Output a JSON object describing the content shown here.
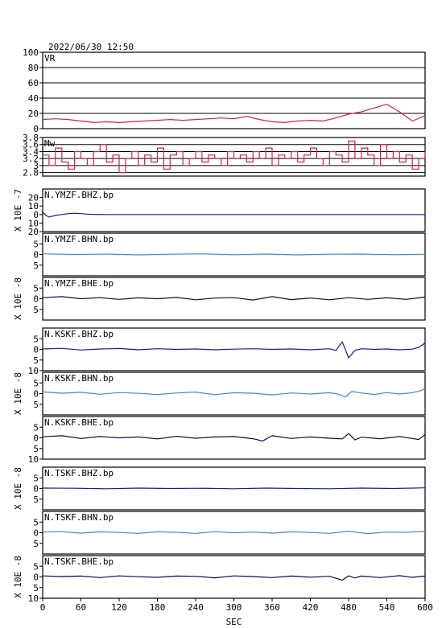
{
  "header": {
    "timestamp": "2022/06/30 12:50"
  },
  "chart_data": {
    "type": "line",
    "xlabel": "SEC",
    "xlim": [
      0,
      600
    ],
    "xticks": [
      0,
      60,
      120,
      180,
      240,
      300,
      360,
      420,
      480,
      540,
      600
    ],
    "panels": [
      {
        "name": "VR",
        "ylim": [
          0,
          100
        ],
        "yticks": [
          0,
          20,
          40,
          60,
          80,
          100
        ],
        "ytick_labels": [
          "0",
          "20",
          "40",
          "60",
          "80",
          "100"
        ],
        "grid": true,
        "color": "#d6204a",
        "series": {
          "x": [
            0,
            20,
            40,
            60,
            80,
            100,
            120,
            140,
            160,
            180,
            200,
            220,
            240,
            260,
            280,
            300,
            320,
            340,
            360,
            380,
            400,
            420,
            440,
            460,
            480,
            500,
            520,
            540,
            560,
            580,
            600
          ],
          "y": [
            12,
            13,
            12,
            10,
            8,
            9,
            8,
            9,
            10,
            11,
            12,
            11,
            12,
            13,
            14,
            13,
            16,
            12,
            9,
            8,
            10,
            11,
            10,
            14,
            19,
            22,
            27,
            32,
            22,
            10,
            17
          ]
        }
      },
      {
        "name": "Mw",
        "ylim": [
          2.7,
          3.8
        ],
        "yticks": [
          2.8,
          3.0,
          3.2,
          3.4,
          3.6,
          3.8
        ],
        "ytick_labels": [
          "2.8",
          "3",
          "3.2",
          "3.4",
          "3.6",
          "3.8"
        ],
        "grid": true,
        "color": "#d6204a",
        "series": {
          "x": [
            0,
            10,
            20,
            30,
            40,
            50,
            60,
            70,
            80,
            90,
            100,
            110,
            120,
            130,
            140,
            150,
            160,
            170,
            180,
            190,
            200,
            210,
            220,
            230,
            240,
            250,
            260,
            270,
            280,
            290,
            300,
            310,
            320,
            330,
            340,
            350,
            360,
            370,
            380,
            390,
            400,
            410,
            420,
            430,
            440,
            450,
            460,
            470,
            480,
            490,
            500,
            510,
            520,
            530,
            540,
            550,
            560,
            570,
            580,
            590,
            600
          ],
          "y": [
            3.3,
            3.0,
            3.5,
            3.1,
            2.9,
            3.4,
            3.2,
            3.0,
            3.4,
            3.6,
            3.1,
            3.3,
            2.8,
            3.2,
            3.4,
            3.0,
            3.3,
            3.1,
            3.5,
            2.9,
            3.3,
            3.4,
            3.0,
            3.2,
            3.4,
            3.1,
            3.3,
            3.2,
            3.0,
            3.4,
            3.2,
            3.3,
            3.1,
            3.4,
            3.2,
            3.5,
            3.0,
            3.3,
            3.2,
            3.4,
            3.1,
            3.3,
            3.5,
            3.2,
            3.0,
            3.4,
            3.3,
            3.1,
            3.7,
            3.2,
            3.5,
            3.3,
            3.0,
            3.6,
            3.2,
            3.4,
            3.1,
            3.3,
            2.9,
            3.2,
            3.4
          ]
        }
      },
      {
        "name": "N.YMZF.BHZ.bp",
        "ylim": [
          -20,
          30
        ],
        "yticks": [
          -20,
          -10,
          0,
          10,
          20
        ],
        "ytick_labels": [
          "20",
          "10",
          "0",
          "10",
          "20"
        ],
        "color": "#1a1aa0",
        "series": {
          "x": [
            0,
            5,
            10,
            15,
            20,
            30,
            40,
            50,
            60,
            70,
            80,
            100,
            150,
            200,
            300,
            400,
            500,
            600
          ],
          "y": [
            3,
            -1,
            -3,
            -2,
            -1,
            0,
            1,
            1.5,
            1,
            0.5,
            0.2,
            0,
            0,
            0,
            0,
            0,
            0,
            0
          ]
        }
      },
      {
        "name": "N.YMZF.BHN.bp",
        "ylim": [
          -10,
          10
        ],
        "yticks": [
          -5,
          0,
          5
        ],
        "ytick_labels": [
          "5",
          "0",
          "5"
        ],
        "color": "#3c8ad2",
        "series": {
          "x": [
            0,
            50,
            100,
            150,
            200,
            250,
            300,
            350,
            400,
            450,
            500,
            550,
            600
          ],
          "y": [
            0.3,
            0,
            0.2,
            -0.2,
            0.1,
            0.3,
            -0.1,
            0.2,
            -0.2,
            0.1,
            0.2,
            -0.1,
            0.1
          ]
        }
      },
      {
        "name": "N.YMZF.BHE.bp",
        "ylim": [
          -10,
          10
        ],
        "yticks": [
          -5,
          0,
          5
        ],
        "ytick_labels": [
          "5",
          "0",
          "5"
        ],
        "color": "#0a0a4a",
        "series": {
          "x": [
            0,
            30,
            60,
            90,
            120,
            150,
            180,
            210,
            240,
            270,
            300,
            330,
            360,
            390,
            420,
            450,
            480,
            510,
            540,
            570,
            600
          ],
          "y": [
            0.5,
            1,
            0,
            0.5,
            -0.3,
            0.4,
            0,
            0.6,
            -0.5,
            0.3,
            0.5,
            -0.6,
            1,
            -0.4,
            0.3,
            -0.5,
            0.5,
            -0.3,
            0.4,
            -0.3,
            0.8
          ]
        }
      },
      {
        "name": "N.KSKF.BHZ.bp",
        "ylim": [
          -10,
          10
        ],
        "yticks": [
          -10,
          -5,
          0,
          5
        ],
        "ytick_labels": [
          "10",
          "5",
          "0",
          "5"
        ],
        "color": "#1a1aa0",
        "series": {
          "x": [
            0,
            30,
            60,
            90,
            120,
            150,
            180,
            210,
            240,
            270,
            300,
            330,
            360,
            390,
            420,
            450,
            460,
            470,
            475,
            480,
            490,
            500,
            520,
            540,
            560,
            580,
            590,
            600
          ],
          "y": [
            0.2,
            0.5,
            -0.3,
            0.2,
            0.4,
            -0.2,
            0.3,
            0,
            0.2,
            -0.2,
            0.1,
            0.3,
            0,
            0.2,
            -0.2,
            0.3,
            -0.5,
            3.5,
            0,
            -4,
            -0.5,
            0.3,
            0,
            0.2,
            -0.2,
            0.1,
            1,
            3
          ]
        }
      },
      {
        "name": "N.KSKF.BHN.bp",
        "ylim": [
          -10,
          10
        ],
        "yticks": [
          -5,
          0,
          5
        ],
        "ytick_labels": [
          "5",
          "0",
          "5"
        ],
        "color": "#3c8ad2",
        "series": {
          "x": [
            0,
            30,
            60,
            90,
            120,
            150,
            180,
            210,
            240,
            270,
            300,
            330,
            360,
            390,
            420,
            450,
            465,
            475,
            485,
            500,
            520,
            540,
            560,
            580,
            595,
            600
          ],
          "y": [
            0.8,
            0.2,
            0.6,
            -0.3,
            0.5,
            0.1,
            -0.4,
            0.3,
            0.7,
            -0.5,
            0.4,
            0.2,
            -0.6,
            0.3,
            -0.2,
            0.4,
            -0.3,
            -1.5,
            1,
            0.3,
            -0.4,
            0.5,
            -0.2,
            0.4,
            1.5,
            2.5
          ]
        }
      },
      {
        "name": "N.KSKF.BHE.bp",
        "ylim": [
          -10,
          10
        ],
        "yticks": [
          -10,
          -5,
          0,
          5
        ],
        "ytick_labels": [
          "10",
          "5",
          "0",
          "5"
        ],
        "color": "#0a0a4a",
        "series": {
          "x": [
            0,
            30,
            60,
            90,
            120,
            150,
            180,
            210,
            240,
            270,
            300,
            330,
            345,
            360,
            390,
            420,
            450,
            470,
            480,
            490,
            500,
            530,
            560,
            580,
            590,
            600
          ],
          "y": [
            0.5,
            1,
            -0.3,
            0.6,
            0,
            0.4,
            -0.5,
            0.7,
            -0.2,
            0.4,
            0.6,
            -0.4,
            -1.5,
            1,
            -0.3,
            0.4,
            -0.2,
            -0.5,
            2,
            -1,
            0.3,
            -0.4,
            0.6,
            -0.3,
            -0.8,
            1.5
          ]
        }
      },
      {
        "name": "N.TSKF.BHZ.bp",
        "ylim": [
          -10,
          10
        ],
        "yticks": [
          -5,
          0,
          5
        ],
        "ytick_labels": [
          "5",
          "0",
          "5"
        ],
        "color": "#1a1aa0",
        "series": {
          "x": [
            0,
            50,
            100,
            150,
            200,
            250,
            300,
            350,
            400,
            450,
            500,
            550,
            600
          ],
          "y": [
            0.2,
            0.1,
            -0.1,
            0.2,
            0,
            0.1,
            -0.1,
            0.2,
            0,
            -0.1,
            0.2,
            0,
            0.3
          ]
        }
      },
      {
        "name": "N.TSKF.BHN.bp",
        "ylim": [
          -10,
          10
        ],
        "yticks": [
          -5,
          0,
          5
        ],
        "ytick_labels": [
          "5",
          "0",
          "5"
        ],
        "color": "#3c8ad2",
        "series": {
          "x": [
            0,
            30,
            60,
            90,
            120,
            150,
            180,
            210,
            240,
            270,
            300,
            330,
            360,
            390,
            420,
            450,
            480,
            510,
            540,
            570,
            600
          ],
          "y": [
            0.3,
            0.5,
            -0.2,
            0.4,
            0.1,
            -0.3,
            0.4,
            0.2,
            -0.3,
            0.5,
            0,
            0.3,
            -0.2,
            0.4,
            0.1,
            -0.3,
            0.7,
            -0.4,
            0.3,
            0.2,
            0.6
          ]
        }
      },
      {
        "name": "N.TSKF.BHE.bp",
        "ylim": [
          -10,
          10
        ],
        "yticks": [
          -10,
          -5,
          0,
          5
        ],
        "ytick_labels": [
          "10",
          "5",
          "0",
          "5"
        ],
        "color": "#0a0a4a",
        "series": {
          "x": [
            0,
            30,
            60,
            90,
            120,
            150,
            180,
            210,
            240,
            270,
            300,
            330,
            360,
            390,
            420,
            450,
            470,
            480,
            490,
            500,
            530,
            560,
            580,
            600
          ],
          "y": [
            0.5,
            0.2,
            0.4,
            -0.3,
            0.5,
            0.1,
            -0.2,
            0.4,
            0.3,
            -0.4,
            0.5,
            0.2,
            -0.3,
            0.4,
            -0.1,
            0.3,
            -1.5,
            0.5,
            -0.5,
            0.4,
            -0.3,
            0.6,
            -0.2,
            0.4
          ]
        }
      }
    ],
    "side_labels": [
      {
        "text": "X 10E -7",
        "panel": 2
      },
      {
        "text": "X 10E -8",
        "panel": 4
      },
      {
        "text": "X 10E -8",
        "panel": 6
      },
      {
        "text": "X 10E -8",
        "panel": 8
      },
      {
        "text": "X 10E -8",
        "panel": 10
      }
    ]
  }
}
